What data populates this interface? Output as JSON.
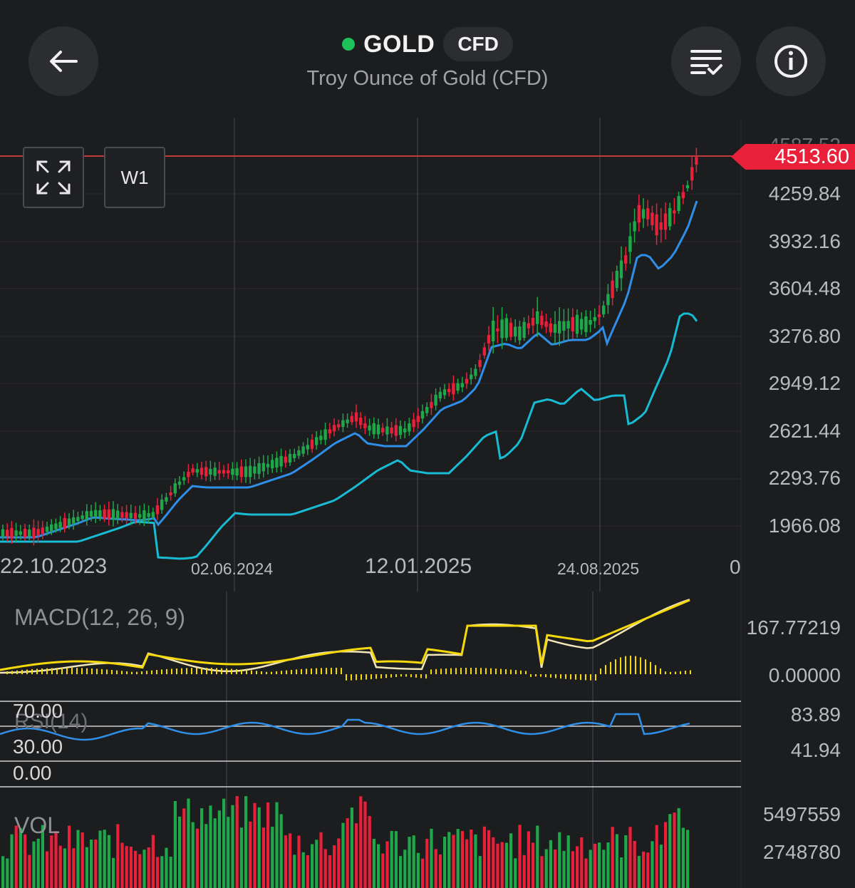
{
  "header": {
    "back_icon": "arrow-left-icon",
    "symbol": "GOLD",
    "status_color": "#1ec25a",
    "badge": "CFD",
    "subtitle": "Troy Ounce of Gold (CFD)",
    "menu_icon": "list-settings-icon",
    "info_icon": "info-icon"
  },
  "chart_controls": {
    "expand_icon": "expand-icon",
    "timeframe": "W1"
  },
  "price_chart": {
    "current_price": "4513.60",
    "current_price_color": "#e8203a",
    "top_label_partial": "4587.52",
    "y_axis_labels": [
      "4259.84",
      "3932.16",
      "3604.48",
      "3276.80",
      "2949.12",
      "2621.44",
      "2293.76",
      "1966.08"
    ],
    "x_axis_labels": [
      "22.10.2023",
      "02.06.2024",
      "12.01.2025",
      "24.08.2025"
    ],
    "x_axis_end_label": "0",
    "up_color": "#1fa84a",
    "down_color": "#e8203a",
    "ma_fast_color": "#2f8fe8",
    "ma_slow_color": "#17bcd4"
  },
  "macd": {
    "label": "MACD(12, 26, 9)",
    "axis_labels": [
      "167.77219",
      "0.00000"
    ],
    "line_color": "#f5d90a",
    "signal_color": "#f0e6b8"
  },
  "rsi": {
    "label": "RSI(14)",
    "levels": [
      "70.00",
      "30.00",
      "0.00"
    ],
    "axis_labels": [
      "83.89",
      "41.94"
    ],
    "line_color": "#2f8fe8"
  },
  "volume": {
    "label": "VOL",
    "axis_labels": [
      "5497559",
      "2748780"
    ]
  },
  "chart_data": {
    "type": "candlestick",
    "interval": "W1",
    "x_labels": [
      "22.10.2023",
      "02.06.2024",
      "12.01.2025",
      "24.08.2025"
    ],
    "ylim": [
      1966.08,
      4587.52
    ],
    "last_close": 4513.6,
    "series": [
      {
        "name": "MACD(12, 26, 9)",
        "values": []
      },
      {
        "name": "RSI(14)",
        "values": []
      },
      {
        "name": "VOL",
        "values": []
      }
    ]
  }
}
